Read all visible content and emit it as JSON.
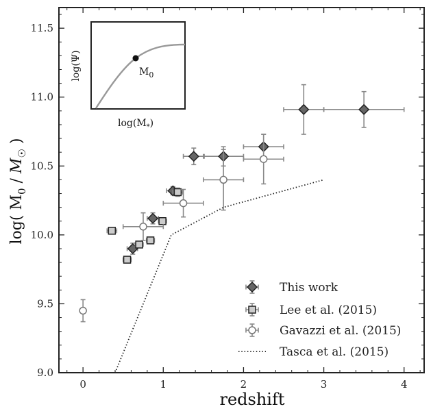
{
  "chart_data": {
    "type": "scatter",
    "xlabel": "redshift",
    "ylabel": "log( M_0 / M_☉ )",
    "xlim": [
      -0.3,
      4.25
    ],
    "ylim": [
      9.0,
      11.65
    ],
    "x_ticks": [
      0,
      1,
      2,
      3,
      4
    ],
    "y_ticks": [
      9.0,
      9.5,
      10.0,
      10.5,
      11.0,
      11.5
    ],
    "x_minor_step": 0.2,
    "y_minor_step": 0.1,
    "grid": false,
    "legend_position": "bottom-right",
    "series": [
      {
        "name": "This work",
        "marker": "diamond",
        "color": "#666666",
        "points": [
          {
            "x": 0.62,
            "y": 9.9,
            "xerr": [
              0.07,
              0.06
            ],
            "yerr": [
              0.04,
              0.04
            ]
          },
          {
            "x": 0.87,
            "y": 10.12,
            "xerr": [
              0.07,
              0.07
            ],
            "yerr": [
              0.04,
              0.04
            ]
          },
          {
            "x": 1.12,
            "y": 10.32,
            "xerr": [
              0.08,
              0.08
            ],
            "yerr": [
              0.03,
              0.03
            ]
          },
          {
            "x": 1.38,
            "y": 10.57,
            "xerr": [
              0.13,
              0.13
            ],
            "yerr": [
              0.06,
              0.06
            ]
          },
          {
            "x": 1.75,
            "y": 10.57,
            "xerr": [
              0.25,
              0.25
            ],
            "yerr": [
              0.07,
              0.07
            ]
          },
          {
            "x": 2.25,
            "y": 10.64,
            "xerr": [
              0.25,
              0.25
            ],
            "yerr": [
              0.09,
              0.09
            ]
          },
          {
            "x": 2.75,
            "y": 10.91,
            "xerr": [
              0.25,
              0.25
            ],
            "yerr": [
              0.18,
              0.18
            ]
          },
          {
            "x": 3.5,
            "y": 10.91,
            "xerr": [
              0.5,
              0.5
            ],
            "yerr": [
              0.13,
              0.13
            ]
          }
        ]
      },
      {
        "name": "Lee et al. (2015)",
        "marker": "square",
        "color": "#cccccc",
        "points": [
          {
            "x": 0.36,
            "y": 10.03,
            "xerr": [
              0.06,
              0.06
            ],
            "yerr": [
              0.02,
              0.02
            ]
          },
          {
            "x": 0.55,
            "y": 9.82,
            "xerr": [
              0.05,
              0.05
            ],
            "yerr": [
              0.02,
              0.02
            ]
          },
          {
            "x": 0.7,
            "y": 9.93,
            "xerr": [
              0.05,
              0.05
            ],
            "yerr": [
              0.02,
              0.02
            ]
          },
          {
            "x": 0.84,
            "y": 9.96,
            "xerr": [
              0.05,
              0.05
            ],
            "yerr": [
              0.02,
              0.02
            ]
          },
          {
            "x": 0.99,
            "y": 10.1,
            "xerr": [
              0.05,
              0.05
            ],
            "yerr": [
              0.02,
              0.02
            ]
          },
          {
            "x": 1.18,
            "y": 10.31,
            "xerr": [
              0.06,
              0.06
            ],
            "yerr": [
              0.03,
              0.03
            ]
          }
        ]
      },
      {
        "name": "Gavazzi et al. (2015)",
        "marker": "circle",
        "color": "#ffffff",
        "points": [
          {
            "x": 0.0,
            "y": 9.45,
            "xerr": [
              0.0,
              0.0
            ],
            "yerr": [
              0.08,
              0.08
            ]
          },
          {
            "x": 0.75,
            "y": 10.06,
            "xerr": [
              0.25,
              0.25
            ],
            "yerr": [
              0.1,
              0.1
            ]
          },
          {
            "x": 1.25,
            "y": 10.23,
            "xerr": [
              0.25,
              0.25
            ],
            "yerr": [
              0.1,
              0.1
            ]
          },
          {
            "x": 1.75,
            "y": 10.4,
            "xerr": [
              0.25,
              0.25
            ],
            "yerr": [
              0.22,
              0.22
            ]
          },
          {
            "x": 2.25,
            "y": 10.55,
            "xerr": [
              0.25,
              0.25
            ],
            "yerr": [
              0.18,
              0.18
            ]
          }
        ]
      },
      {
        "name": "Tasca et al. (2015)",
        "type": "line",
        "style": "dotted",
        "color": "#222222",
        "x": [
          0.4,
          1.1,
          1.75,
          3.0
        ],
        "y": [
          9.0,
          10.0,
          10.2,
          10.4
        ]
      }
    ],
    "inset": {
      "xlabel": "log(M_*)",
      "ylabel": "log(Ψ)",
      "point_label": "M_0",
      "curve_color": "#999999"
    }
  },
  "colors": {
    "marker_edge": "#222222",
    "errorbar": "#888888",
    "axes": "#222222"
  }
}
